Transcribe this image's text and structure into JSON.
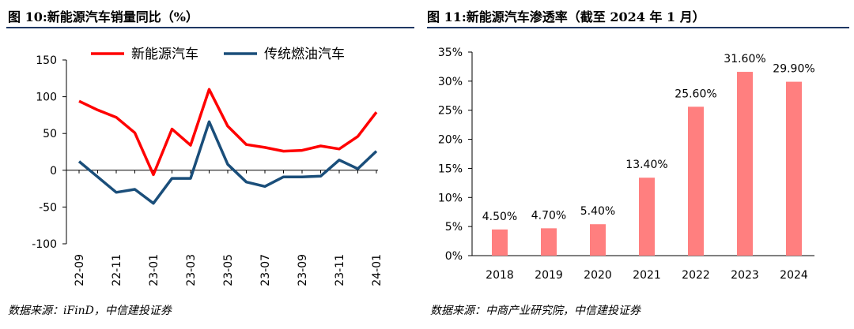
{
  "left": {
    "title": "图 10:新能源汽车销量同比（%）",
    "source": "数据来源：iFinD，中信建投证券"
  },
  "right": {
    "title": "图 11:新能源汽车渗透率（截至 2024 年 1 月）",
    "source": "数据来源：中商产业研究院，中信建投证券"
  },
  "chart_data": [
    {
      "type": "line",
      "title": "",
      "ylim": [
        -100,
        150
      ],
      "y_ticks": [
        150,
        100,
        50,
        0,
        -50,
        -100
      ],
      "x_tick_labels": [
        "22-09",
        "22-11",
        "23-01",
        "23-03",
        "23-05",
        "23-07",
        "23-09",
        "23-11",
        "24-01"
      ],
      "legend_position": "top",
      "grid": false,
      "series": [
        {
          "name": "新能源汽车",
          "color": "#ff0000",
          "values": [
            94,
            82,
            72,
            51,
            -6,
            56,
            34,
            110,
            60,
            35,
            31,
            26,
            27,
            33,
            29,
            46,
            79
          ]
        },
        {
          "name": "传统燃油汽车",
          "color": "#1a4e7a",
          "values": [
            12,
            -9,
            -30,
            -26,
            -45,
            -11,
            -11,
            66,
            8,
            -16,
            -22,
            -9,
            -9,
            -8,
            14,
            2,
            26
          ]
        }
      ]
    },
    {
      "type": "bar",
      "title": "",
      "categories": [
        "2018",
        "2019",
        "2020",
        "2021",
        "2022",
        "2023",
        "2024"
      ],
      "values": [
        4.5,
        4.7,
        5.4,
        13.4,
        25.6,
        31.6,
        29.9
      ],
      "data_labels": [
        "4.50%",
        "4.70%",
        "5.40%",
        "13.40%",
        "25.60%",
        "31.60%",
        "29.90%"
      ],
      "ylim": [
        0,
        35
      ],
      "y_ticks": [
        0,
        5,
        10,
        15,
        20,
        25,
        30,
        35
      ],
      "y_tick_labels": [
        "0%",
        "5%",
        "10%",
        "15%",
        "20%",
        "25%",
        "30%",
        "35%"
      ],
      "bar_color": "#ff7f7f",
      "grid": false
    }
  ]
}
